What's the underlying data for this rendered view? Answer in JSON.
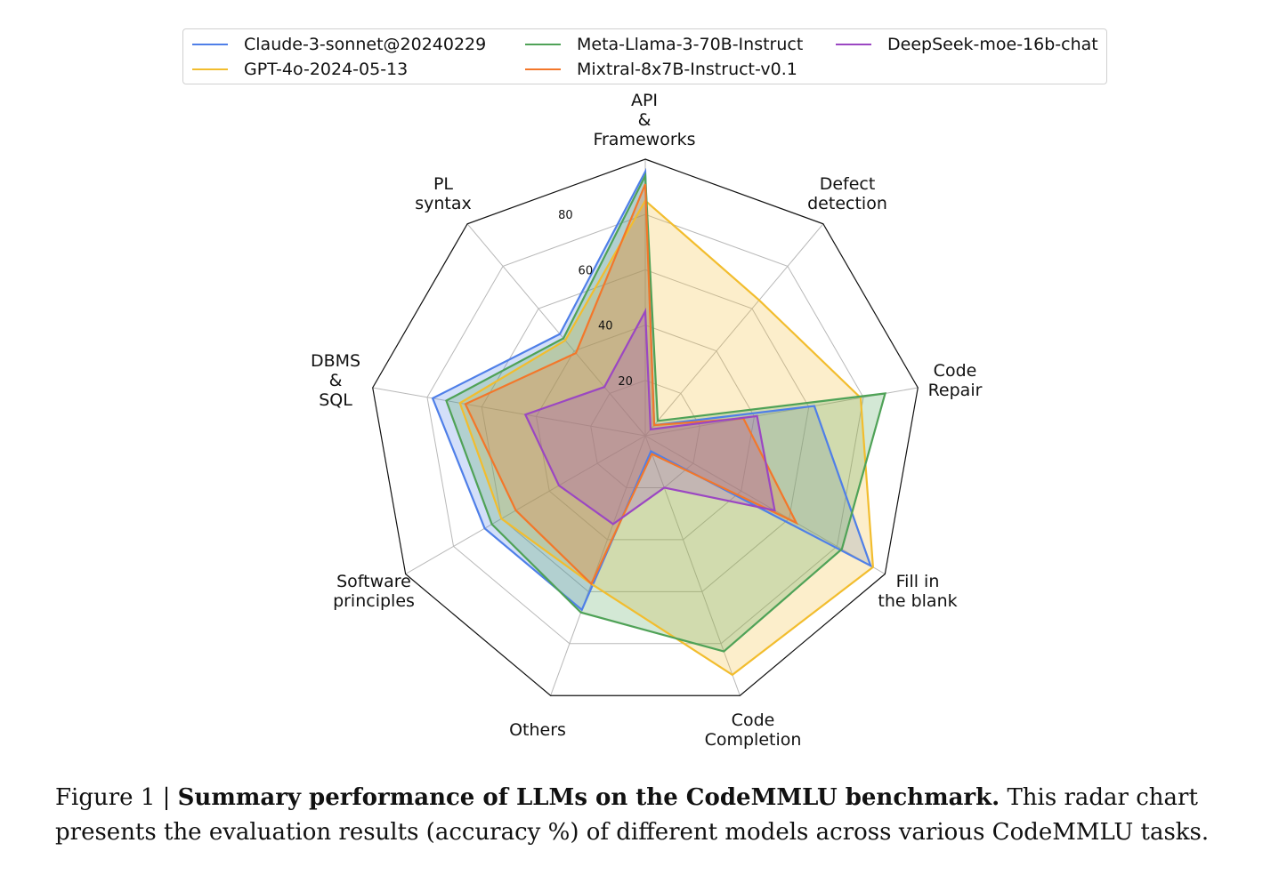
{
  "chart_data": {
    "type": "radar",
    "categories": [
      [
        "API",
        "&",
        "Frameworks"
      ],
      [
        "Defect",
        "detection"
      ],
      [
        "Code",
        "Repair"
      ],
      [
        "Fill in",
        "the blank"
      ],
      [
        "Code",
        "Completion"
      ],
      [
        "Others"
      ],
      [
        "Software",
        "principles"
      ],
      [
        "DBMS",
        "&",
        "SQL"
      ],
      [
        "PL",
        "syntax"
      ]
    ],
    "rlim": [
      0,
      100
    ],
    "rticks": [
      20,
      40,
      60,
      80
    ],
    "grid": true,
    "legend_position": "top",
    "series": [
      {
        "name": "Claude-3-sonnet@20240229",
        "color": "#4f7fe8",
        "values": [
          95.5,
          5,
          62,
          94,
          6,
          67,
          67,
          78,
          48
        ]
      },
      {
        "name": "GPT-4o-2024-05-13",
        "color": "#f2bd2e",
        "values": [
          85,
          64,
          79,
          95,
          92,
          57,
          60,
          68,
          45
        ]
      },
      {
        "name": "Meta-Llama-3-70B-Instruct",
        "color": "#4fa257",
        "values": [
          94,
          7,
          88,
          82,
          83,
          68,
          64,
          73,
          46
        ]
      },
      {
        "name": "Mixtral-8x7B-Instruct-v0.1",
        "color": "#f3772a",
        "values": [
          91,
          5,
          36,
          63,
          7,
          57,
          54,
          66,
          39
        ]
      },
      {
        "name": "DeepSeek-moe-16b-chat",
        "color": "#9b47c2",
        "values": [
          45,
          3,
          41,
          54,
          20,
          34,
          36,
          44,
          23
        ]
      }
    ]
  },
  "caption": {
    "prefix": "Figure 1 | ",
    "bold": "Summary performance of LLMs on the CodeMMLU benchmark.",
    "rest": " This radar chart presents the evaluation results (accuracy %) of different models across various CodeMMLU tasks."
  }
}
